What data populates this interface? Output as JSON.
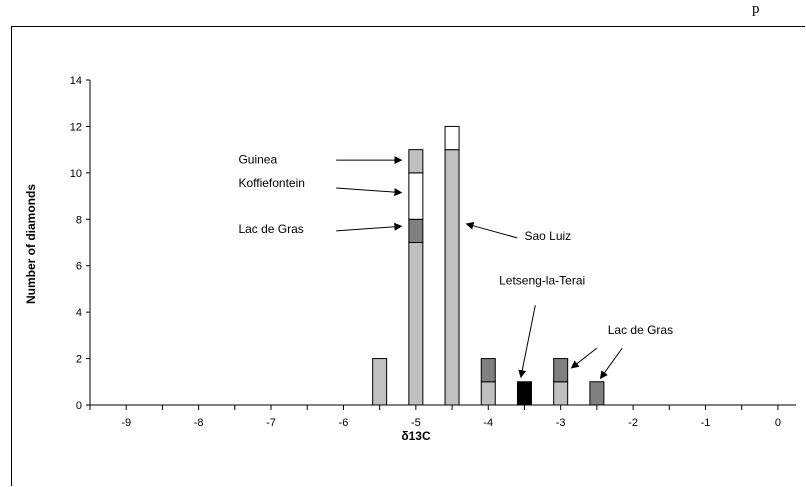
{
  "corner_text": "p",
  "chart_data": {
    "type": "bar",
    "stacked": true,
    "xlabel": "δ13C",
    "ylabel": "Number of diamonds",
    "xlim": [
      -9.5,
      0.25
    ],
    "ylim": [
      0,
      14
    ],
    "x_ticks": [
      -9,
      -8,
      -7,
      -6,
      -5,
      -4,
      -3,
      -2,
      -1,
      0
    ],
    "y_ticks": [
      0,
      2,
      4,
      6,
      8,
      10,
      12,
      14
    ],
    "grid": false,
    "legend": "none",
    "bars": [
      {
        "x": -5.5,
        "segments": [
          {
            "value": 2,
            "color": "#c0c0c0"
          }
        ]
      },
      {
        "x": -5.0,
        "segments": [
          {
            "value": 7,
            "color": "#c0c0c0"
          },
          {
            "value": 1,
            "color": "#808080"
          },
          {
            "value": 2,
            "color": "#ffffff"
          },
          {
            "value": 1,
            "color": "#c0c0c0"
          }
        ]
      },
      {
        "x": -4.5,
        "segments": [
          {
            "value": 11,
            "color": "#c0c0c0"
          },
          {
            "value": 1,
            "color": "#ffffff"
          }
        ]
      },
      {
        "x": -4.0,
        "segments": [
          {
            "value": 1,
            "color": "#c0c0c0"
          },
          {
            "value": 1,
            "color": "#808080"
          }
        ]
      },
      {
        "x": -3.5,
        "segments": [
          {
            "value": 1,
            "color": "#000000"
          }
        ]
      },
      {
        "x": -3.0,
        "segments": [
          {
            "value": 1,
            "color": "#c0c0c0"
          },
          {
            "value": 1,
            "color": "#808080"
          }
        ]
      },
      {
        "x": -2.5,
        "segments": [
          {
            "value": 1,
            "color": "#808080"
          }
        ]
      }
    ],
    "annotations": [
      {
        "text": "Guinea",
        "text_at": [
          -7.45,
          10.4
        ],
        "arrow_from": [
          -6.1,
          10.55
        ],
        "arrow_to": [
          -5.2,
          10.55
        ]
      },
      {
        "text": "Koffiefontein",
        "text_at": [
          -7.45,
          9.4
        ],
        "arrow_from": [
          -6.1,
          9.35
        ],
        "arrow_to": [
          -5.2,
          9.15
        ]
      },
      {
        "text": "Lac de Gras",
        "text_at": [
          -7.45,
          7.4
        ],
        "arrow_from": [
          -6.1,
          7.5
        ],
        "arrow_to": [
          -5.2,
          7.7
        ]
      },
      {
        "text": "Sao Luiz",
        "text_at": [
          -3.5,
          7.1
        ],
        "arrow_from": [
          -3.6,
          7.2
        ],
        "arrow_to": [
          -4.3,
          7.8
        ]
      },
      {
        "text": "Letseng-la-Terai",
        "text_at": [
          -3.85,
          5.2
        ],
        "arrow_from": [
          -3.35,
          4.3
        ],
        "arrow_to": [
          -3.55,
          1.2
        ]
      },
      {
        "text": "Lac de Gras",
        "text_at": [
          -2.35,
          3.05
        ],
        "arrow_from": [
          -2.5,
          2.45
        ],
        "arrow_to": [
          -2.85,
          1.6
        ]
      },
      {
        "text": "",
        "text_at": null,
        "arrow_from": [
          -2.15,
          2.45
        ],
        "arrow_to": [
          -2.45,
          1.15
        ]
      }
    ]
  }
}
